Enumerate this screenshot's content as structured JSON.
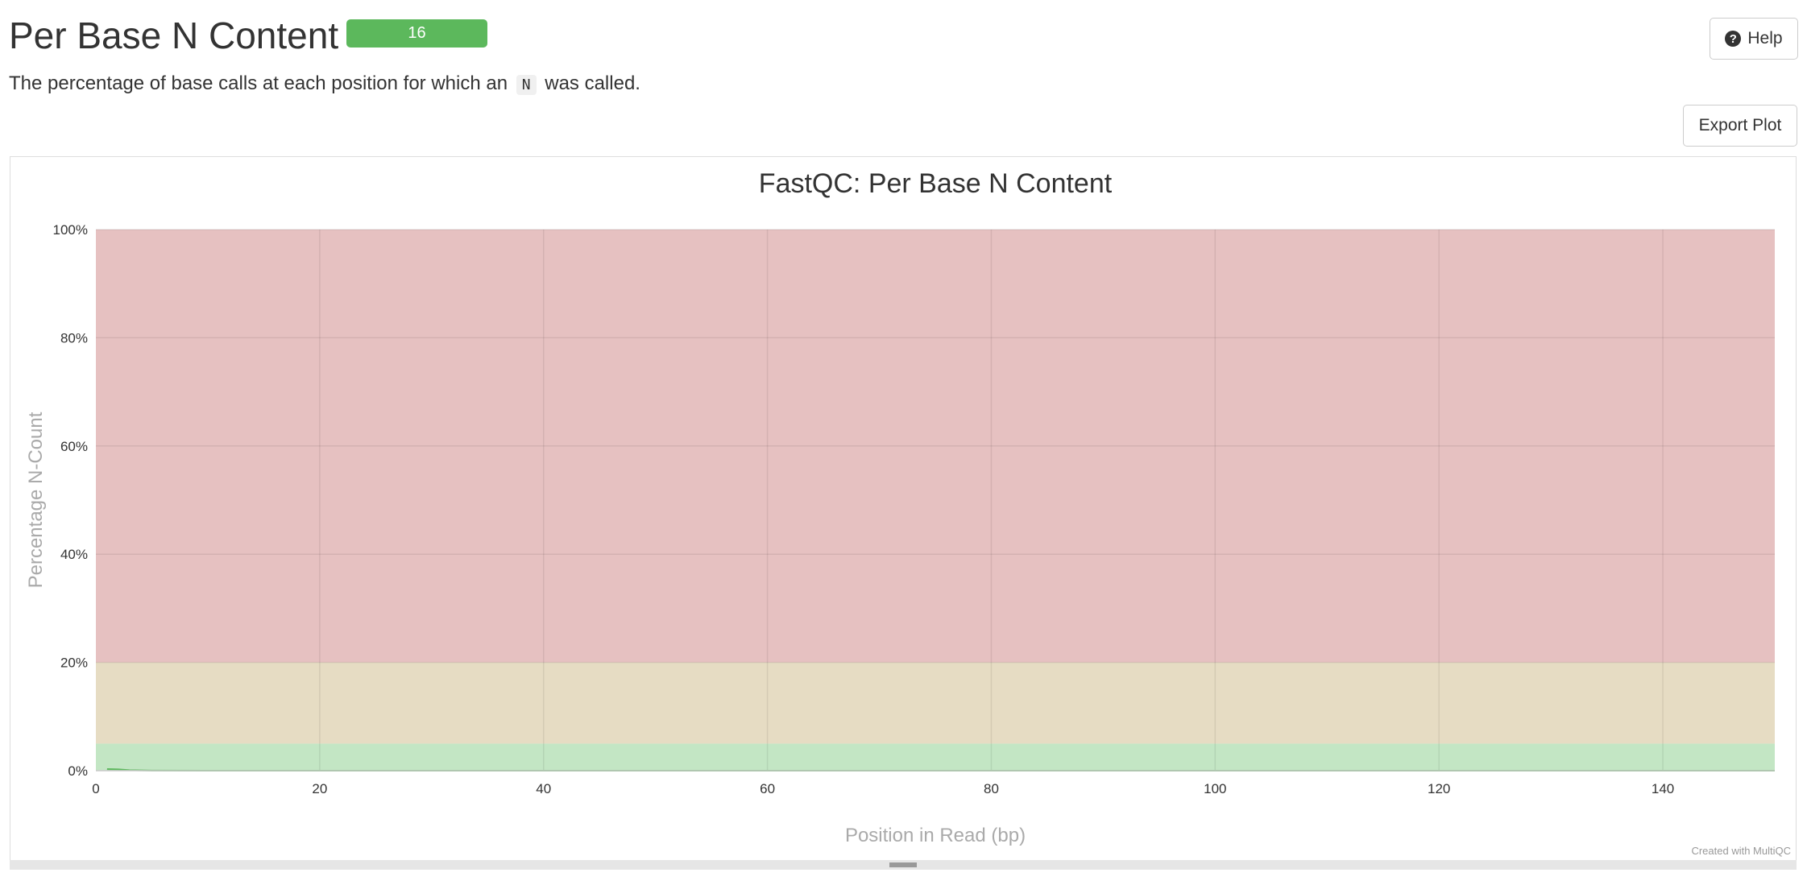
{
  "header": {
    "title": "Per Base N Content",
    "badge": "16",
    "help_label": "Help",
    "help_icon": "question-circle-icon",
    "description_before": "The percentage of base calls at each position for which an",
    "description_code": "N",
    "description_after": "was called.",
    "export_label": "Export Plot"
  },
  "colors": {
    "badge": "#5cb85c",
    "fail_band": "#e6c1c1",
    "warn_band": "#e6dcc3",
    "pass_band": "#c3e6c4",
    "series": "#5cb85c"
  },
  "chart_data": {
    "type": "area",
    "title": "FastQC: Per Base N Content",
    "xlabel": "Position in Read (bp)",
    "ylabel": "Percentage N-Count",
    "xlim": [
      0,
      150
    ],
    "ylim": [
      0,
      100
    ],
    "x_ticks": [
      0,
      20,
      40,
      60,
      80,
      100,
      120,
      140
    ],
    "y_ticks": [
      0,
      20,
      40,
      60,
      80,
      100
    ],
    "y_tick_suffix": "%",
    "grid": true,
    "bands": [
      {
        "name": "fail",
        "from": 20,
        "to": 100,
        "color": "#e6c1c1"
      },
      {
        "name": "warn",
        "from": 5,
        "to": 20,
        "color": "#e6dcc3"
      },
      {
        "name": "pass",
        "from": 0,
        "to": 5,
        "color": "#c3e6c4"
      }
    ],
    "series": [
      {
        "x": [
          1,
          2,
          3,
          5,
          10,
          20,
          50,
          100,
          150
        ],
        "y": [
          0.3,
          0.25,
          0.1,
          0.02,
          0,
          0,
          0,
          0,
          0
        ],
        "color": "#5cb85c"
      }
    ],
    "credit": "Created with MultiQC"
  }
}
